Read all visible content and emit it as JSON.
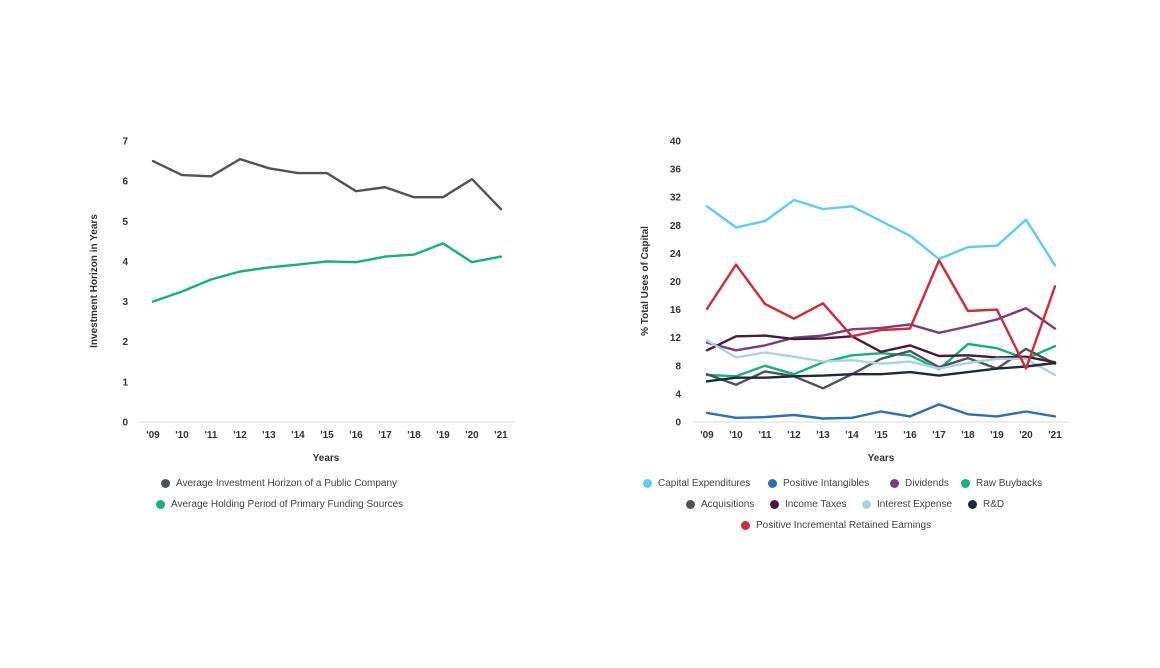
{
  "chart_data": [
    {
      "type": "line",
      "x": [
        "'09",
        "'10",
        "'11",
        "'12",
        "'13",
        "'14",
        "'15",
        "'16",
        "'17",
        "'18",
        "'19",
        "'20",
        "'21"
      ],
      "xlabel": "Years",
      "ylabel": "Investment Horizon in Years",
      "ylim": [
        0,
        7
      ],
      "yticks": [
        0,
        1,
        2,
        3,
        4,
        5,
        6,
        7
      ],
      "grid": false,
      "legend": "bottom",
      "series": [
        {
          "name": "Average Investment Horizon of a Public Company",
          "color": "#4d5358",
          "values": [
            6.5,
            6.15,
            6.12,
            6.55,
            6.32,
            6.2,
            6.2,
            5.75,
            5.85,
            5.6,
            5.6,
            6.05,
            5.3
          ]
        },
        {
          "name": "Average Holding Period of Primary Funding Sources",
          "color": "#13b27d",
          "values": [
            3.0,
            3.25,
            3.55,
            3.75,
            3.85,
            3.92,
            4.0,
            3.98,
            4.12,
            4.17,
            4.45,
            3.98,
            4.12
          ]
        }
      ]
    },
    {
      "type": "line",
      "x": [
        "'09",
        "'10",
        "'11",
        "'12",
        "'13",
        "'14",
        "'15",
        "'16",
        "'17",
        "'18",
        "'19",
        "'20",
        "'21"
      ],
      "xlabel": "Years",
      "ylabel": "% Total Uses of Capital",
      "ylim": [
        0,
        40
      ],
      "yticks": [
        0,
        4,
        8,
        12,
        16,
        20,
        24,
        28,
        32,
        36,
        40
      ],
      "grid": false,
      "legend": "bottom",
      "series": [
        {
          "name": "Capital Expenditures",
          "color": "#5dcdf5",
          "values": [
            30.7,
            27.7,
            28.6,
            31.6,
            30.3,
            30.7,
            28.6,
            26.5,
            23.2,
            24.9,
            25.1,
            28.8,
            22.3
          ]
        },
        {
          "name": "Positive Intangibles",
          "color": "#2a70b8",
          "values": [
            1.3,
            0.6,
            0.7,
            1.0,
            0.5,
            0.6,
            1.5,
            0.8,
            2.5,
            1.1,
            0.8,
            1.5,
            0.8
          ]
        },
        {
          "name": "Dividends",
          "color": "#7a3d7e",
          "values": [
            11.3,
            10.2,
            10.9,
            12.0,
            12.3,
            13.2,
            13.4,
            13.9,
            12.7,
            13.6,
            14.6,
            16.2,
            13.3
          ]
        },
        {
          "name": "Raw Buybacks",
          "color": "#13b27d",
          "values": [
            6.7,
            6.5,
            8.0,
            6.8,
            8.5,
            9.5,
            9.8,
            9.5,
            7.5,
            11.1,
            10.5,
            9.0,
            10.8
          ]
        },
        {
          "name": "Acquisitions",
          "color": "#4d5358",
          "values": [
            6.8,
            5.3,
            7.2,
            6.5,
            4.8,
            6.8,
            9.0,
            10.1,
            7.8,
            9.1,
            7.6,
            10.4,
            8.3
          ]
        },
        {
          "name": "Income Taxes",
          "color": "#4a1b3a",
          "values": [
            10.2,
            12.2,
            12.3,
            11.8,
            11.9,
            12.2,
            10.0,
            10.9,
            9.4,
            9.5,
            9.2,
            9.3,
            8.5
          ]
        },
        {
          "name": "Interest Expense",
          "color": "#a9d4e6",
          "values": [
            11.6,
            9.2,
            9.9,
            9.3,
            8.6,
            8.8,
            8.3,
            8.6,
            7.6,
            8.4,
            9.0,
            9.0,
            6.7
          ]
        },
        {
          "name": "R&D",
          "color": "#1a2a44",
          "values": [
            5.8,
            6.3,
            6.3,
            6.5,
            6.6,
            6.8,
            6.8,
            7.1,
            6.6,
            7.1,
            7.6,
            7.9,
            8.4
          ]
        },
        {
          "name": "Positive Incremental Retained Earnings",
          "color": "#d42a32",
          "values": [
            16.1,
            22.4,
            16.8,
            14.7,
            16.9,
            12.2,
            13.1,
            13.3,
            23.0,
            15.8,
            16.0,
            7.6,
            19.3
          ]
        }
      ]
    }
  ]
}
